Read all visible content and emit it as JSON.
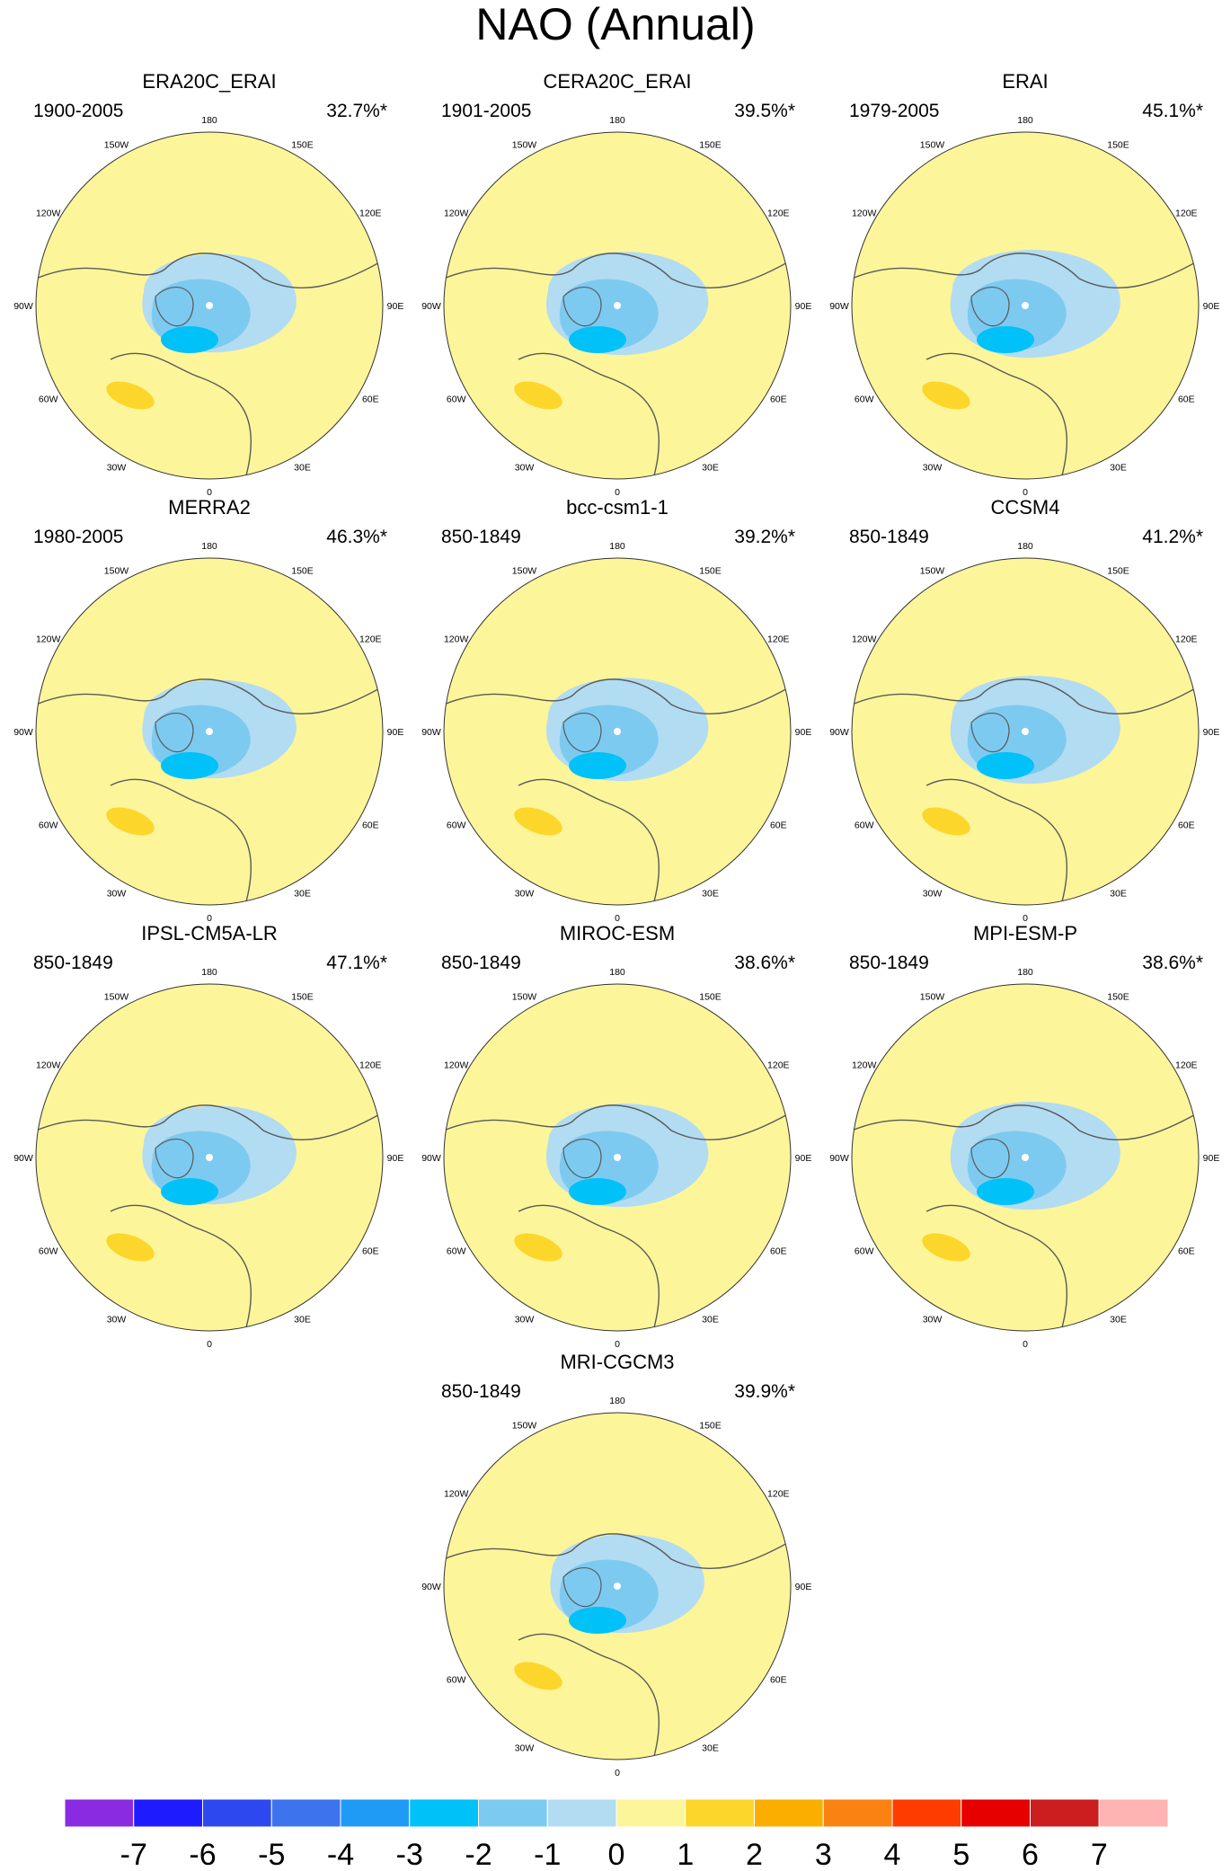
{
  "figure_title": "NAO (Annual)",
  "colors": {
    "neg7": "#8a2be2",
    "neg6": "#1e1cff",
    "neg5": "#2c48ee",
    "neg4": "#3d74ee",
    "neg3": "#1f9bf6",
    "neg2": "#00c1f8",
    "neg1": "#7dcaf1",
    "neg0": "#b2dcf2",
    "pos0": "#fdf59a",
    "pos1": "#fcd62b",
    "pos2": "#fbae00",
    "pos3": "#fa8210",
    "pos4": "#ff3c00",
    "pos5": "#e60000",
    "pos6": "#cc1e1e",
    "pos7": "#ffb4b4",
    "coast": "#5a5a5a"
  },
  "longitude_labels": [
    "180",
    "150E",
    "120E",
    "90E",
    "60E",
    "30E",
    "0",
    "30W",
    "60W",
    "90W",
    "120W",
    "150W"
  ],
  "panels": [
    {
      "name": "ERA20C_ERAI",
      "period": "1900-2005",
      "variance": "32.7%*"
    },
    {
      "name": "CERA20C_ERAI",
      "period": "1901-2005",
      "variance": "39.5%*"
    },
    {
      "name": "ERAI",
      "period": "1979-2005",
      "variance": "45.1%*"
    },
    {
      "name": "MERRA2",
      "period": "1980-2005",
      "variance": "46.3%*"
    },
    {
      "name": "bcc-csm1-1",
      "period": "850-1849",
      "variance": "39.2%*"
    },
    {
      "name": "CCSM4",
      "period": "850-1849",
      "variance": "41.2%*"
    },
    {
      "name": "IPSL-CM5A-LR",
      "period": "850-1849",
      "variance": "47.1%*"
    },
    {
      "name": "MIROC-ESM",
      "period": "850-1849",
      "variance": "38.6%*"
    },
    {
      "name": "MPI-ESM-P",
      "period": "850-1849",
      "variance": "38.6%*"
    },
    {
      "name": "MRI-CGCM3",
      "period": "850-1849",
      "variance": "39.9%*"
    }
  ],
  "colorbar": {
    "labels": [
      "-7",
      "-6",
      "-5",
      "-4",
      "-3",
      "-2",
      "-1",
      "0",
      "1",
      "2",
      "3",
      "4",
      "5",
      "6",
      "7"
    ]
  }
}
